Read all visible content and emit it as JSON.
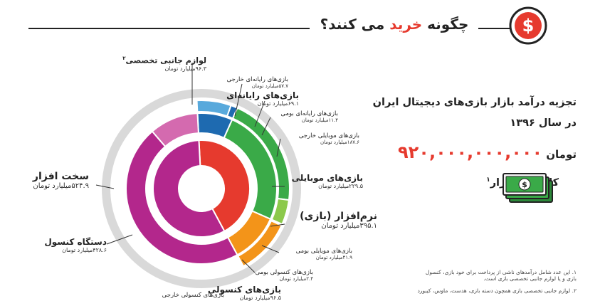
{
  "colors": {
    "red": "#e63a2e",
    "magenta": "#b3278c",
    "magenta_light": "#d46aaf",
    "green": "#3aaa48",
    "green_light": "#8cc94b",
    "blue": "#1e6ab0",
    "blue_light": "#58a9dc",
    "orange": "#f39419",
    "yellow": "#f8c200",
    "gray": "#d9d9d9"
  },
  "header": {
    "title_part1": "چگونه",
    "title_accent": "خرید",
    "title_part2": "می کنند؟",
    "icon": "dollar-circle-icon"
  },
  "summary": {
    "line1": "تجزیه درآمد بازار بازی‌های دیجیتال ایران",
    "line2": "در سال ۱۳۹۶",
    "amount": "۹۲۰,۰۰۰,۰۰۰,۰۰۰",
    "currency": "تومان",
    "market_label": "کل حجم بازار",
    "market_sup": "۱",
    "icon": "money-bill-icon"
  },
  "labels": {
    "accessories": {
      "name": "لوازم جانبی تخصصی",
      "sup": "۲",
      "value": "۹۶.۳",
      "unit": "میلیارد تومان"
    },
    "pc_foreign": {
      "name": "بازی‌های رایانه‌ای خارجی",
      "value": "۵۷.۷",
      "unit": "میلیارد تومان"
    },
    "pc": {
      "name": "بازی‌های رایانه‌ای",
      "value": "۶۹.۱",
      "unit": "میلیارد تومان"
    },
    "pc_local": {
      "name": "بازی‌های رایانه‌ای بومی",
      "value": "۱۱.۴",
      "unit": "میلیارد تومان"
    },
    "mobile_foreign": {
      "name": "بازی‌های موبایلی خارجی",
      "value": "۱۸۷.۶",
      "unit": "میلیارد تومان"
    },
    "mobile": {
      "name": "بازی‌های موبایلی",
      "value": "۲۲۹.۵",
      "unit": "میلیارد تومان"
    },
    "software": {
      "name": "نرم‌افزار (بازی)",
      "value": "۳۹۵.۱",
      "unit": "میلیارد تومان"
    },
    "mobile_local": {
      "name": "بازی‌های موبایلی بومی",
      "value": "۴۱.۹",
      "unit": "میلیارد تومان"
    },
    "console_local": {
      "name": "بازی‌های کنسولی بومی",
      "value": "۲.۴",
      "unit": "میلیارد تومان"
    },
    "console": {
      "name": "بازی‌های کنسولی",
      "value": "۹۶.۵",
      "unit": "میلیارد تومان"
    },
    "console_foreign": {
      "name": "بازی‌های کنسولی خارجی",
      "value": "",
      "unit": ""
    },
    "hardware": {
      "name": "سخت افزار",
      "value": "۵۲۴.۹",
      "unit": "میلیارد تومان"
    },
    "console_device": {
      "name": "دستگاه کنسول",
      "value": "۴۲۸.۶",
      "unit": "میلیارد تومان"
    }
  },
  "footnotes": {
    "n1_line1": "۱. این عدد شامل درآمدهای ناشی از پرداخت برای خود بازی، کنسول",
    "n1_line2": "بازی و یا لوازم جانبی تخصصی بازی است.",
    "n2_line1": "۲. لوازم جانبی تخصصی بازی همچون دسته بازی، هدست، ماوس، کیبورد"
  },
  "chart_data": {
    "type": "sunburst",
    "title": "",
    "unit": "میلیارد تومان",
    "total": 920000000000,
    "rings": [
      {
        "level": "inner",
        "segments": [
          {
            "name": "نرم‌افزار (بازی)",
            "value": 395.1
          },
          {
            "name": "سخت افزار",
            "value": 524.9
          }
        ]
      },
      {
        "level": "middle",
        "segments": [
          {
            "name": "بازی‌های رایانه‌ای",
            "value": 69.1,
            "parent": "نرم‌افزار (بازی)"
          },
          {
            "name": "بازی‌های موبایلی",
            "value": 229.5,
            "parent": "نرم‌افزار (بازی)"
          },
          {
            "name": "بازی‌های کنسولی",
            "value": 96.5,
            "parent": "نرم‌افزار (بازی)"
          },
          {
            "name": "دستگاه کنسول",
            "value": 428.6,
            "parent": "سخت افزار"
          },
          {
            "name": "لوازم جانبی تخصصی",
            "value": 96.3,
            "parent": "سخت افزار"
          }
        ]
      },
      {
        "level": "outer",
        "segments": [
          {
            "name": "بازی‌های رایانه‌ای خارجی",
            "value": 57.7,
            "parent": "بازی‌های رایانه‌ای"
          },
          {
            "name": "بازی‌های رایانه‌ای بومی",
            "value": 11.4,
            "parent": "بازی‌های رایانه‌ای"
          },
          {
            "name": "بازی‌های موبایلی خارجی",
            "value": 187.6,
            "parent": "بازی‌های موبایلی"
          },
          {
            "name": "بازی‌های موبایلی بومی",
            "value": 41.9,
            "parent": "بازی‌های موبایلی"
          },
          {
            "name": "بازی‌های کنسولی بومی",
            "value": 2.4,
            "parent": "بازی‌های کنسولی"
          },
          {
            "name": "بازی‌های کنسولی خارجی",
            "value": 94.1,
            "parent": "بازی‌های کنسولی"
          }
        ]
      }
    ]
  }
}
